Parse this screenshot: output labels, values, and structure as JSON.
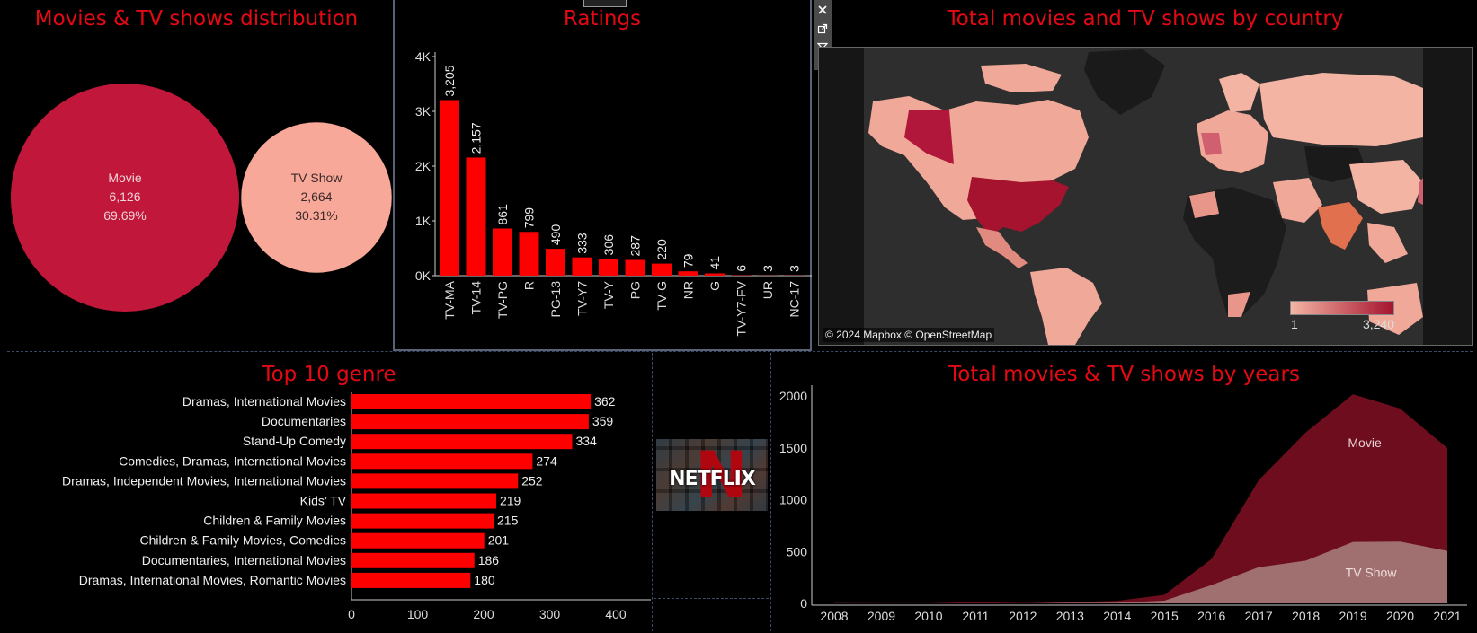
{
  "titles": {
    "distribution": "Movies & TV shows distribution",
    "ratings": "Ratings",
    "country": "Total movies and TV shows by country",
    "genre": "Top 10 genre",
    "years": "Total movies & TV shows by years"
  },
  "map": {
    "attribution": "© 2024 Mapbox © OpenStreetMap",
    "legend_min": "1",
    "legend_max": "3,240",
    "colors": {
      "low": "#f4b4a4",
      "high": "#a5132e",
      "land": "#202020",
      "ocean": "#2e2e2e"
    }
  },
  "logo": {
    "letter": "N",
    "word": "NETFLIX"
  },
  "colors": {
    "title": "#e50914",
    "bar": "#ff0000",
    "movie": "#c0173a",
    "tvshow": "#f8a898",
    "movie_area": "#6d0d1e",
    "tv_area": "#a07070"
  },
  "chart_data": [
    {
      "type": "bubble",
      "title": "Movies & TV shows distribution",
      "items": [
        {
          "name": "Movie",
          "value": 6126,
          "value_label": "6,126",
          "percent": "69.69%"
        },
        {
          "name": "TV Show",
          "value": 2664,
          "value_label": "2,664",
          "percent": "30.31%"
        }
      ]
    },
    {
      "type": "bar",
      "title": "Ratings",
      "categories": [
        "TV-MA",
        "TV-14",
        "TV-PG",
        "R",
        "PG-13",
        "TV-Y7",
        "TV-Y",
        "PG",
        "TV-G",
        "NR",
        "G",
        "TV-Y7-FV",
        "UR",
        "NC-17"
      ],
      "values": [
        3205,
        2157,
        861,
        799,
        490,
        333,
        306,
        287,
        220,
        79,
        41,
        6,
        3,
        3
      ],
      "value_labels": [
        "3,205",
        "2,157",
        "861",
        "799",
        "490",
        "333",
        "306",
        "287",
        "220",
        "79",
        "41",
        "6",
        "3",
        "3"
      ],
      "ylim": [
        0,
        4000
      ],
      "yticks": [
        "0K",
        "1K",
        "2K",
        "3K",
        "4K"
      ]
    },
    {
      "type": "bar",
      "orientation": "horizontal",
      "title": "Top 10 genre",
      "categories": [
        "Dramas, International Movies",
        "Documentaries",
        "Stand-Up Comedy",
        "Comedies, Dramas, International Movies",
        "Dramas, Independent Movies, International Movies",
        "Kids’ TV",
        "Children & Family Movies",
        "Children & Family Movies, Comedies",
        "Documentaries, International Movies",
        "Dramas, International Movies, Romantic Movies"
      ],
      "values": [
        362,
        359,
        334,
        274,
        252,
        219,
        215,
        201,
        186,
        180
      ],
      "xlim": [
        0,
        430
      ],
      "xticks": [
        "0",
        "100",
        "200",
        "300",
        "400"
      ]
    },
    {
      "type": "area",
      "title": "Total movies & TV shows by years",
      "x": [
        "2008",
        "2009",
        "2010",
        "2011",
        "2012",
        "2013",
        "2014",
        "2015",
        "2016",
        "2017",
        "2018",
        "2019",
        "2020",
        "2021"
      ],
      "series": [
        {
          "name": "Movie",
          "values": [
            1,
            2,
            1,
            13,
            3,
            6,
            19,
            56,
            253,
            839,
            1237,
            1424,
            1284,
            993
          ]
        },
        {
          "name": "TV Show",
          "values": [
            1,
            0,
            0,
            0,
            0,
            5,
            6,
            26,
            176,
            349,
            412,
            592,
            595,
            505
          ]
        }
      ],
      "stacked": true,
      "ylim": [
        0,
        2100
      ],
      "yticks": [
        "0",
        "500",
        "1000",
        "1500",
        "2000"
      ]
    },
    {
      "type": "map",
      "title": "Total movies and TV shows by country",
      "legend_range": [
        1,
        3240
      ]
    }
  ]
}
